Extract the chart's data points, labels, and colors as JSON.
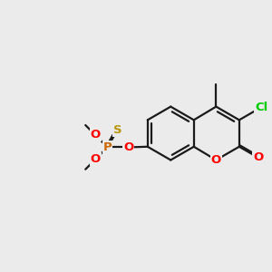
{
  "bg_color": "#ebebeb",
  "bond_color": "#1a1a1a",
  "bond_width": 1.6,
  "atom_colors": {
    "O": "#ff0000",
    "S": "#b8960c",
    "P": "#cc6600",
    "Cl": "#00cc00",
    "C": "#1a1a1a"
  },
  "font_size_atom": 9.5
}
